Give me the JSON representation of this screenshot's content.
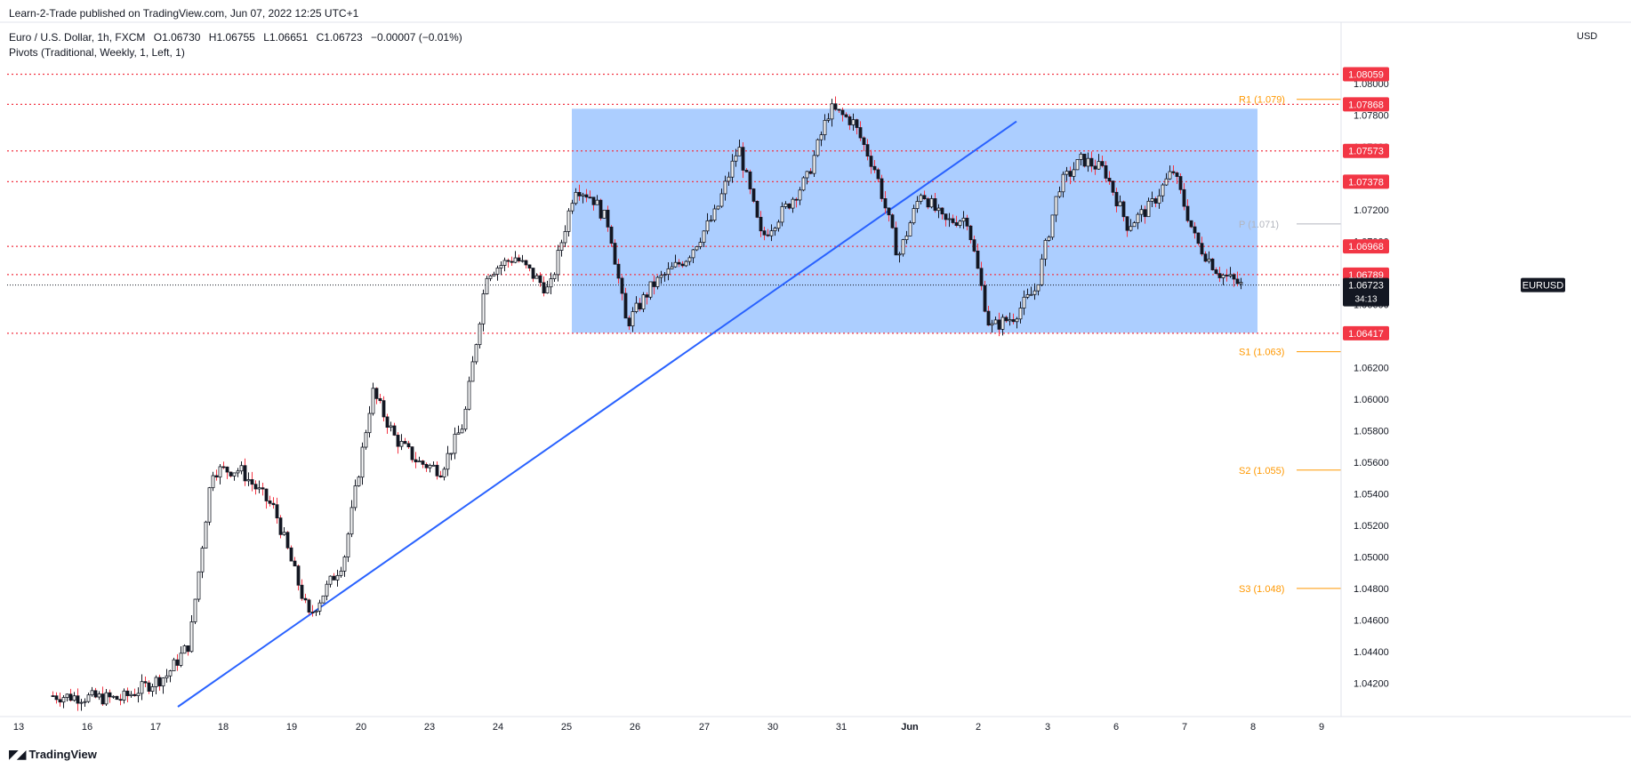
{
  "published_text": "Learn-2-Trade published on TradingView.com, Jun 07, 2022 12:25 UTC+1",
  "symbol": {
    "name": "Euro / U.S. Dollar, 1h, FXCM",
    "open": "O1.06730",
    "high": "H1.06755",
    "low": "L1.06651",
    "close": "C1.06723",
    "change": "−0.00007 (−0.01%)"
  },
  "indicator": "Pivots (Traditional, Weekly, 1, Left, 1)",
  "currency": "USD",
  "ticker": "EURUSD",
  "countdown": "34:13",
  "brand": "TradingView",
  "colors": {
    "up_candle": "#ffffff",
    "candle_outline": "#131722",
    "down_wick": "#f23645",
    "level_line": "#f23645",
    "pivot_line": "#ff9800",
    "pivot_p_line": "#b2b5be",
    "trendline": "#2962ff",
    "range_box": "#a8cbff"
  },
  "chart_data": {
    "type": "candlestick",
    "ylim": [
      1.0405,
      1.0818
    ],
    "price_ticks": [
      "1.08000",
      "1.07800",
      "1.07600",
      "1.07400",
      "1.07200",
      "1.07000",
      "1.06800",
      "1.06600",
      "1.06200",
      "1.06000",
      "1.05800",
      "1.05600",
      "1.05400",
      "1.05200",
      "1.05000",
      "1.04800",
      "1.04600",
      "1.04400",
      "1.04200"
    ],
    "x_axis_labels": [
      "13",
      "16",
      "17",
      "18",
      "19",
      "20",
      "23",
      "24",
      "25",
      "26",
      "27",
      "30",
      "31",
      "Jun",
      "2",
      "3",
      "6",
      "7",
      "8",
      "9"
    ],
    "horizontal_levels": [
      1.08059,
      1.07868,
      1.07573,
      1.07378,
      1.06968,
      1.06789,
      1.06417
    ],
    "level_labels": [
      "1.08059",
      "1.07868",
      "1.07573",
      "1.07378",
      "1.06968",
      "1.06789",
      "1.06417"
    ],
    "current_price": 1.06723,
    "current_price_label": "1.06723",
    "pivots": [
      {
        "label": "R1 (1.079)",
        "value": 1.079
      },
      {
        "label": "P (1.071)",
        "value": 1.0711
      },
      {
        "label": "S1 (1.063)",
        "value": 1.063
      },
      {
        "label": "S2 (1.055)",
        "value": 1.0555
      },
      {
        "label": "S3 (1.048)",
        "value": 1.048
      }
    ],
    "range_box": {
      "from_day": "25",
      "to_day": "8",
      "top": 1.0784,
      "bottom": 1.0642
    },
    "trendline": {
      "from": {
        "day": "17",
        "price": 1.0405
      },
      "to": {
        "day": "3",
        "price": 1.0776
      }
    },
    "price_path": [
      {
        "day": "13",
        "price": 1.0412
      },
      {
        "day": "16",
        "price": 1.041
      },
      {
        "day": "17",
        "price": 1.0425
      },
      {
        "day": "17",
        "price": 1.0445
      },
      {
        "day": "17",
        "price": 1.0555
      },
      {
        "day": "18",
        "price": 1.0555
      },
      {
        "day": "18",
        "price": 1.053
      },
      {
        "day": "19",
        "price": 1.0462
      },
      {
        "day": "19",
        "price": 1.0498
      },
      {
        "day": "20",
        "price": 1.0605
      },
      {
        "day": "20",
        "price": 1.0575
      },
      {
        "day": "20",
        "price": 1.056
      },
      {
        "day": "23",
        "price": 1.0555
      },
      {
        "day": "23",
        "price": 1.0585
      },
      {
        "day": "23",
        "price": 1.068
      },
      {
        "day": "24",
        "price": 1.069
      },
      {
        "day": "24",
        "price": 1.0668
      },
      {
        "day": "25",
        "price": 1.0735
      },
      {
        "day": "25",
        "price": 1.0728
      },
      {
        "day": "25",
        "price": 1.071
      },
      {
        "day": "25",
        "price": 1.0647
      },
      {
        "day": "26",
        "price": 1.0672
      },
      {
        "day": "26",
        "price": 1.069
      },
      {
        "day": "27",
        "price": 1.0718
      },
      {
        "day": "27",
        "price": 1.076
      },
      {
        "day": "27",
        "price": 1.0702
      },
      {
        "day": "30",
        "price": 1.072
      },
      {
        "day": "30",
        "price": 1.074
      },
      {
        "day": "30",
        "price": 1.0784
      },
      {
        "day": "31",
        "price": 1.0776
      },
      {
        "day": "31",
        "price": 1.0745
      },
      {
        "day": "31",
        "price": 1.069
      },
      {
        "day": "Jun",
        "price": 1.0732
      },
      {
        "day": "Jun",
        "price": 1.0712
      },
      {
        "day": "Jun",
        "price": 1.0715
      },
      {
        "day": "2",
        "price": 1.0645
      },
      {
        "day": "2",
        "price": 1.0652
      },
      {
        "day": "2",
        "price": 1.067
      },
      {
        "day": "3",
        "price": 1.0735
      },
      {
        "day": "3",
        "price": 1.0752
      },
      {
        "day": "3",
        "price": 1.0745
      },
      {
        "day": "6",
        "price": 1.071
      },
      {
        "day": "6",
        "price": 1.0722
      },
      {
        "day": "6",
        "price": 1.0745
      },
      {
        "day": "7",
        "price": 1.07
      },
      {
        "day": "7",
        "price": 1.068
      },
      {
        "day": "7",
        "price": 1.0672
      }
    ]
  }
}
